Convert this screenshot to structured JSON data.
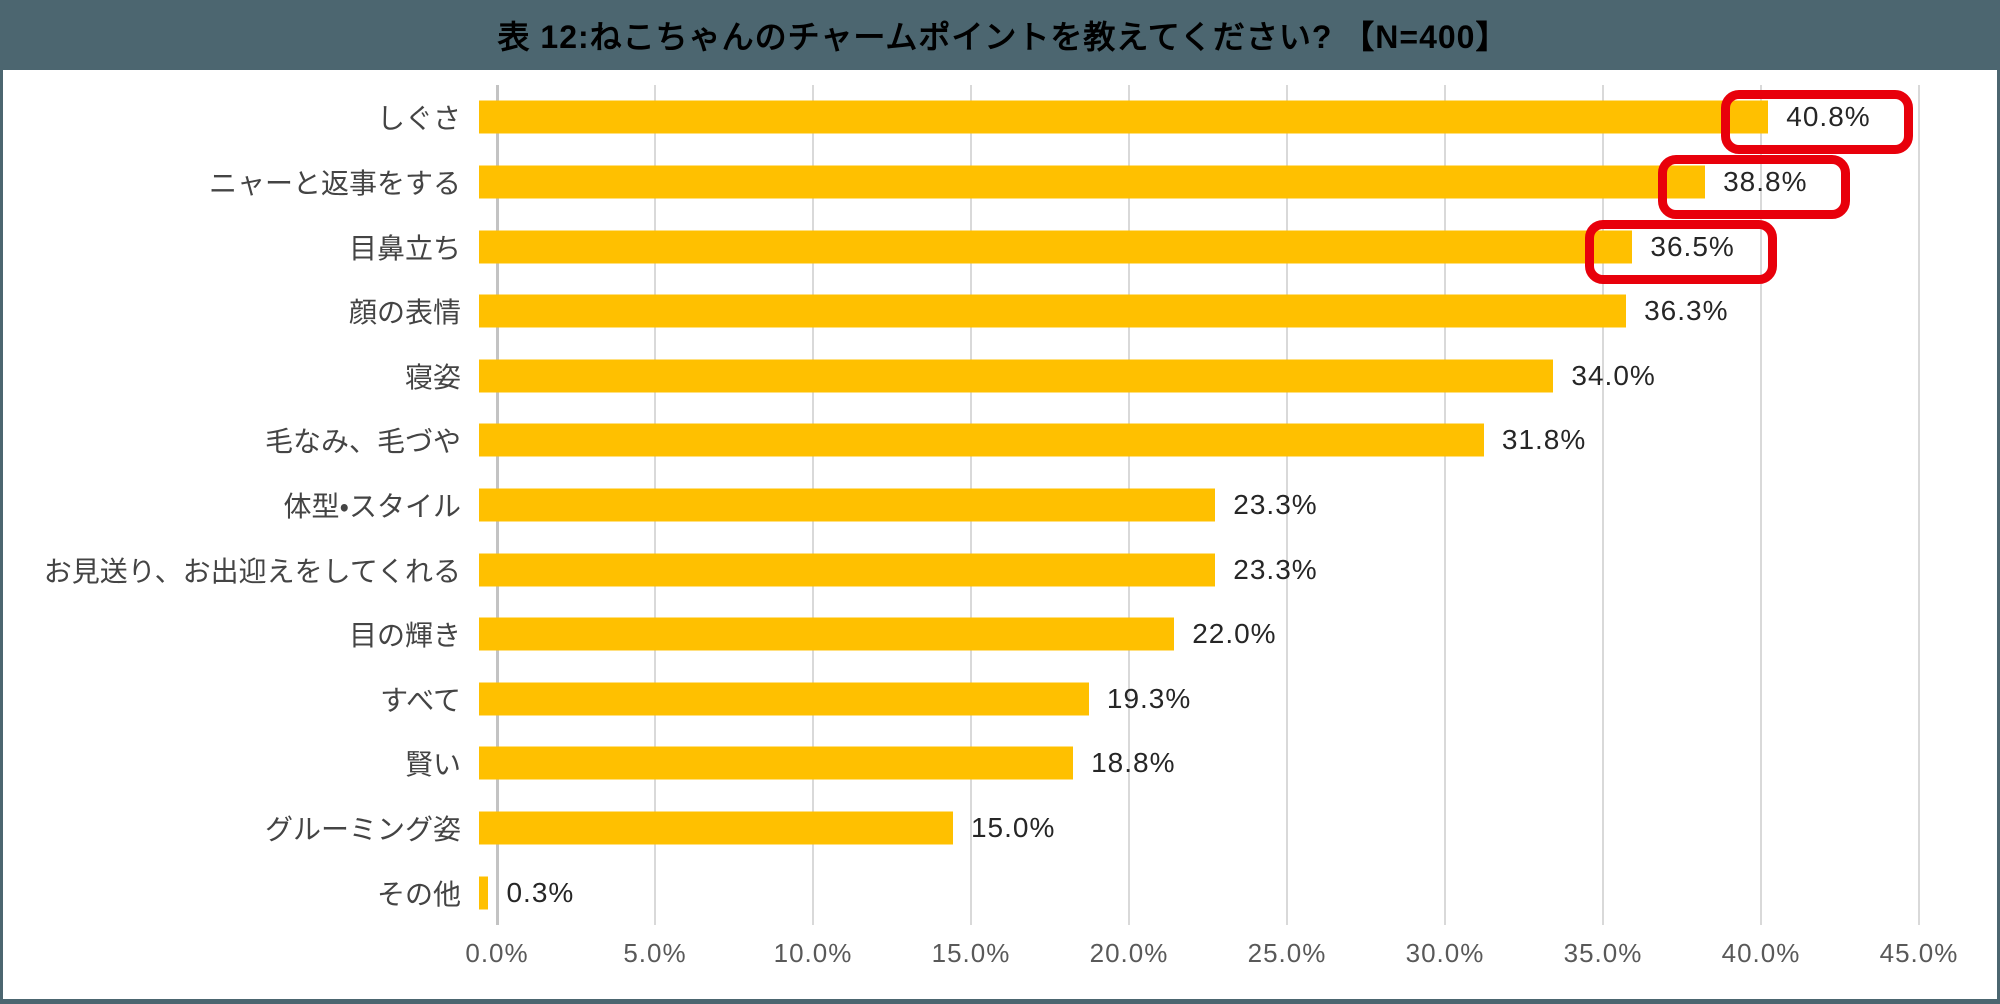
{
  "title": "表 12:ねこちゃんのチャームポイントを教えてください? 【N=400】",
  "chart_data": {
    "type": "bar",
    "orientation": "horizontal",
    "title": "表 12:ねこちゃんのチャームポイントを教えてください? 【N=400】",
    "sample_size_label": "N=400",
    "categories": [
      "しぐさ",
      "ニャーと返事をする",
      "目鼻立ち",
      "顔の表情",
      "寝姿",
      "毛なみ、毛づや",
      "体型・スタイル",
      "お見送り、お出迎えをしてくれる",
      "目の輝き",
      "すべて",
      "賢い",
      "グルーミング姿",
      "その他"
    ],
    "values": [
      40.8,
      38.8,
      36.5,
      36.3,
      34.0,
      31.8,
      23.3,
      23.3,
      22.0,
      19.3,
      18.8,
      15.0,
      0.3
    ],
    "value_labels": [
      "40.8%",
      "38.8%",
      "36.5%",
      "36.3%",
      "34.0%",
      "31.8%",
      "23.3%",
      "23.3%",
      "22.0%",
      "19.3%",
      "18.8%",
      "15.0%",
      "0.3%"
    ],
    "highlighted_indices": [
      0,
      1,
      2
    ],
    "x_ticks": [
      "0.0%",
      "5.0%",
      "10.0%",
      "15.0%",
      "20.0%",
      "25.0%",
      "30.0%",
      "35.0%",
      "40.0%",
      "45.0%"
    ],
    "x_tick_values": [
      0,
      5,
      10,
      15,
      20,
      25,
      30,
      35,
      40,
      45
    ],
    "xlim": [
      0,
      45
    ],
    "grid": true,
    "legend": false
  },
  "colors": {
    "title_band": "#4C6670",
    "frame": "#4C6670",
    "bar": "#FFC000",
    "highlight_box": "#E8000B",
    "gridline": "#D9D9D9",
    "axis_line": "#C3C3C3",
    "category_text": "#444444",
    "value_text": "#262626",
    "tick_text": "#595959",
    "title_text": "#000000"
  }
}
